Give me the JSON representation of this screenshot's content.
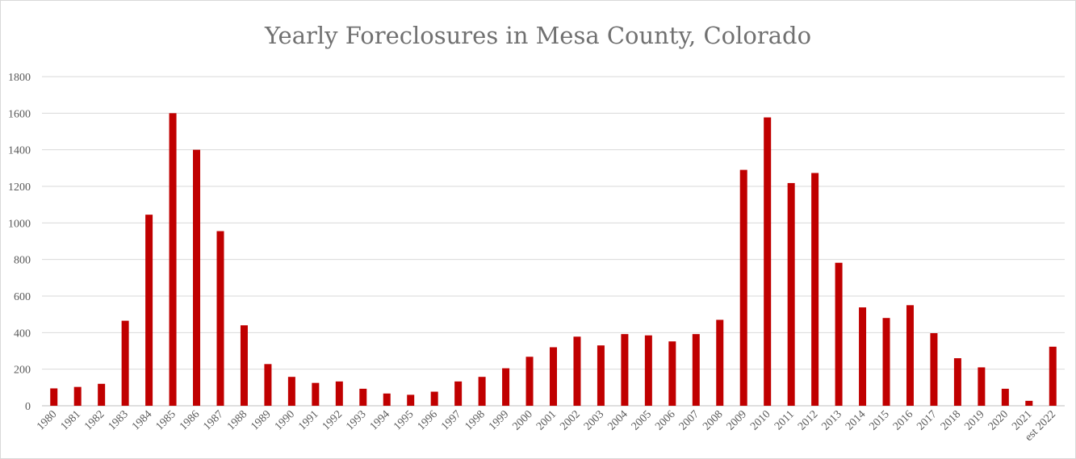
{
  "chart_data": {
    "type": "bar",
    "title": "Yearly Foreclosures in Mesa County, Colorado",
    "xlabel": "",
    "ylabel": "",
    "ylim": [
      0,
      1800
    ],
    "yticks": [
      0,
      200,
      400,
      600,
      800,
      1000,
      1200,
      1400,
      1600,
      1800
    ],
    "grid": true,
    "legend": "none",
    "bar_color": "#c00000",
    "categories": [
      "1980",
      "1981",
      "1982",
      "1983",
      "1984",
      "1985",
      "1986",
      "1987",
      "1988",
      "1989",
      "1990",
      "1991",
      "1992",
      "1993",
      "1994",
      "1995",
      "1996",
      "1997",
      "1998",
      "1999",
      "2000",
      "2001",
      "2002",
      "2003",
      "2004",
      "2005",
      "2006",
      "2007",
      "2008",
      "2009",
      "2010",
      "2011",
      "2012",
      "2013",
      "2014",
      "2015",
      "2016",
      "2017",
      "2018",
      "2019",
      "2020",
      "2021",
      "est 2022"
    ],
    "values": [
      95,
      103,
      120,
      465,
      1045,
      1600,
      1400,
      955,
      440,
      228,
      158,
      125,
      133,
      93,
      67,
      60,
      77,
      133,
      158,
      205,
      268,
      320,
      378,
      330,
      392,
      385,
      352,
      392,
      470,
      1290,
      1577,
      1218,
      1273,
      782,
      538,
      480,
      550,
      397,
      260,
      210,
      93,
      27,
      323
    ]
  }
}
